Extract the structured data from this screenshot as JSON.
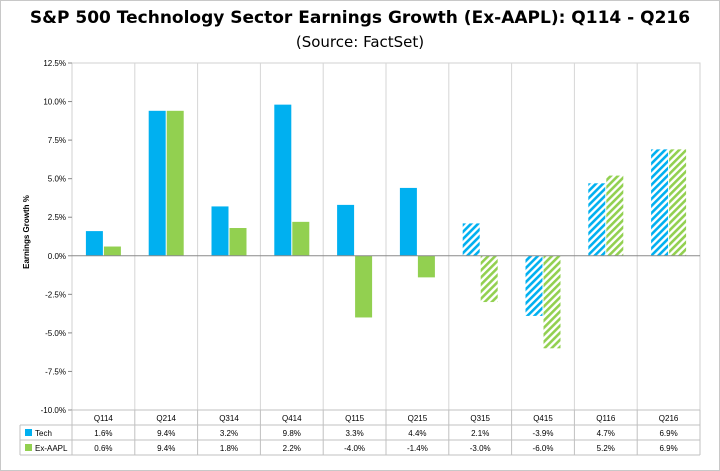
{
  "chart": {
    "title": "S&P 500 Technology Sector Earnings Growth (Ex-AAPL): Q114 - Q216",
    "subtitle": "(Source: FactSet)"
  },
  "chart_data": {
    "type": "bar",
    "title": "S&P 500 Technology Sector Earnings Growth (Ex-AAPL): Q114 - Q216",
    "subtitle": "(Source: FactSet)",
    "xlabel": "",
    "ylabel": "Earnings Growth %",
    "ylim": [
      -10,
      12.5
    ],
    "yticks": [
      "12.5%",
      "10.0%",
      "7.5%",
      "5.0%",
      "2.5%",
      "0.0%",
      "-2.5%",
      "-5.0%",
      "-7.5%",
      "-10.0%"
    ],
    "ytick_values": [
      12.5,
      10,
      7.5,
      5,
      2.5,
      0,
      -2.5,
      -5,
      -7.5,
      -10
    ],
    "categories": [
      "Q114",
      "Q214",
      "Q314",
      "Q414",
      "Q115",
      "Q215",
      "Q315",
      "Q415",
      "Q116",
      "Q216"
    ],
    "estimated_from_index": 6,
    "grid": "vertical category separators",
    "legend": "data table below chart",
    "series": [
      {
        "name": "Tech",
        "color": "#00b0f0",
        "values": [
          1.6,
          9.4,
          3.2,
          9.8,
          3.3,
          4.4,
          2.1,
          -3.9,
          4.7,
          6.9
        ],
        "labels": [
          "1.6%",
          "9.4%",
          "3.2%",
          "9.8%",
          "3.3%",
          "4.4%",
          "2.1%",
          "-3.9%",
          "4.7%",
          "6.9%"
        ]
      },
      {
        "name": "Ex-AAPL",
        "color": "#92d050",
        "values": [
          0.6,
          9.4,
          1.8,
          2.2,
          -4.0,
          -1.4,
          -3.0,
          -6.0,
          5.2,
          6.9
        ],
        "labels": [
          "0.6%",
          "9.4%",
          "1.8%",
          "2.2%",
          "-4.0%",
          "-1.4%",
          "-3.0%",
          "-6.0%",
          "5.2%",
          "6.9%"
        ]
      }
    ]
  }
}
